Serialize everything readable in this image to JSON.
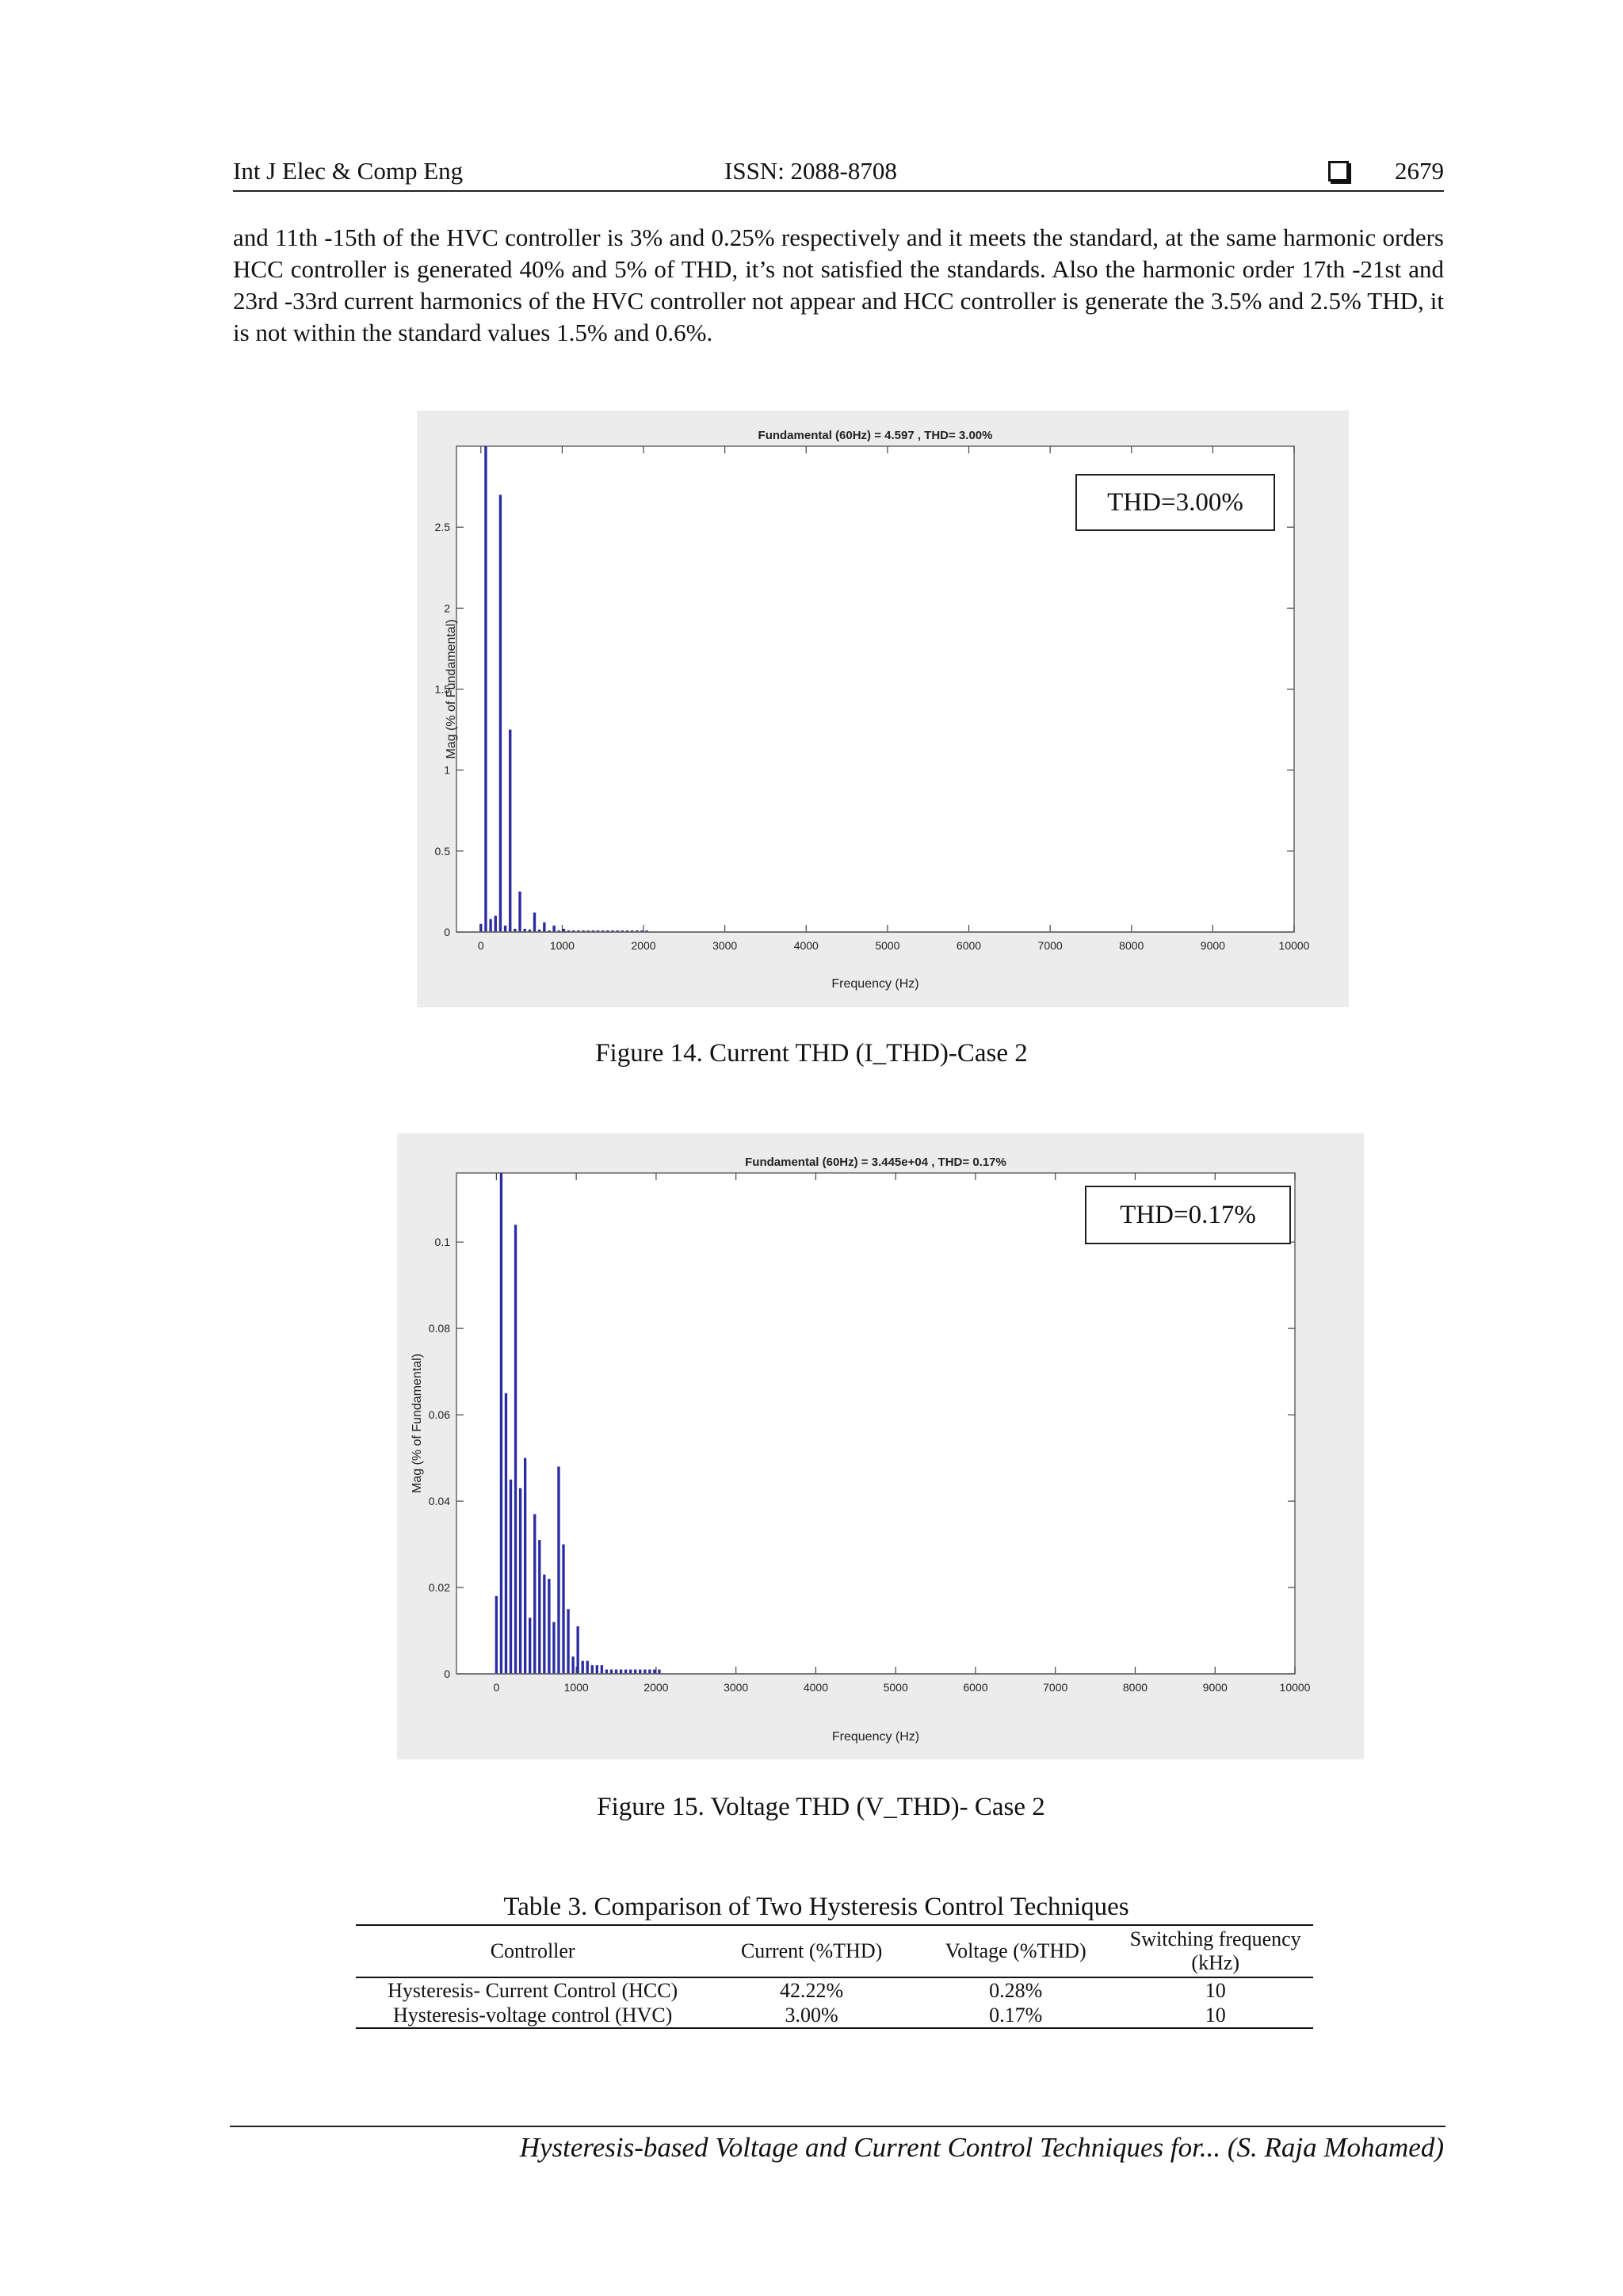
{
  "header": {
    "journal": "Int J Elec & Comp Eng",
    "issn": "ISSN: 2088-8708",
    "page_number": "2679"
  },
  "body_paragraph": "and 11th -15th of the HVC controller is 3% and 0.25% respectively and it meets the standard, at the same harmonic orders HCC controller is generated 40% and 5% of THD, it’s not satisfied the standards. Also the harmonic order 17th -21st and 23rd -33rd current harmonics of the HVC controller not appear and HCC controller is generate the 3.5% and 2.5% THD, it is not within the standard values 1.5% and 0.6%.",
  "figure14": {
    "caption": "Figure 14. Current THD (I_THD)-Case 2",
    "callout": "THD=3.00%"
  },
  "figure15": {
    "caption": "Figure 15. Voltage THD (V_THD)- Case 2",
    "callout": "THD=0.17%"
  },
  "chart_data": [
    {
      "type": "bar",
      "title": "Fundamental (60Hz) = 4.597 , THD= 3.00%",
      "xlabel": "Frequency (Hz)",
      "ylabel": "Mag (% of Fundamental)",
      "xlim": [
        -300,
        10000
      ],
      "ylim": [
        0,
        3
      ],
      "xticks": [
        0,
        1000,
        2000,
        3000,
        4000,
        5000,
        6000,
        7000,
        8000,
        9000,
        10000
      ],
      "xtick_labels": [
        "0",
        "1000",
        "2000",
        "3000",
        "4000",
        "5000",
        "6000",
        "7000",
        "8000",
        "9000",
        "10000"
      ],
      "yticks": [
        0,
        0.5,
        1,
        1.5,
        2,
        2.5
      ],
      "ytick_labels": [
        "0",
        "0.5",
        "1",
        "1.5",
        "2",
        "2.5"
      ],
      "grid": false,
      "x": [
        0,
        60,
        120,
        180,
        240,
        300,
        360,
        420,
        480,
        540,
        600,
        660,
        720,
        780,
        840,
        900,
        960,
        1020,
        1080,
        1140,
        1200,
        1260,
        1320,
        1380,
        1440,
        1500,
        1560,
        1620,
        1680,
        1740,
        1800,
        1860,
        1920,
        1980,
        2040
      ],
      "values": [
        0.05,
        3.0,
        0.08,
        0.1,
        2.7,
        0.04,
        1.25,
        0.02,
        0.25,
        0.02,
        0.015,
        0.12,
        0.015,
        0.06,
        0.01,
        0.04,
        0.01,
        0.02,
        0.01,
        0.01,
        0.01,
        0.01,
        0.01,
        0.01,
        0.01,
        0.01,
        0.01,
        0.01,
        0.01,
        0.01,
        0.01,
        0.01,
        0.01,
        0.01,
        0.01
      ]
    },
    {
      "type": "bar",
      "title": "Fundamental (60Hz) = 3.445e+04 , THD= 0.17%",
      "xlabel": "Frequency (Hz)",
      "ylabel": "Mag (% of Fundamental)",
      "xlim": [
        -500,
        10000
      ],
      "ylim": [
        0,
        0.116
      ],
      "xticks": [
        0,
        1000,
        2000,
        3000,
        4000,
        5000,
        6000,
        7000,
        8000,
        9000,
        10000
      ],
      "xtick_labels": [
        "0",
        "1000",
        "2000",
        "3000",
        "4000",
        "5000",
        "6000",
        "7000",
        "8000",
        "9000",
        "10000"
      ],
      "yticks": [
        0,
        0.02,
        0.04,
        0.06,
        0.08,
        0.1
      ],
      "ytick_labels": [
        "0",
        "0.02",
        "0.04",
        "0.06",
        "0.08",
        "0.1"
      ],
      "grid": false,
      "x": [
        0,
        60,
        120,
        180,
        240,
        300,
        360,
        420,
        480,
        540,
        600,
        660,
        720,
        780,
        840,
        900,
        960,
        1020,
        1080,
        1140,
        1200,
        1260,
        1320,
        1380,
        1440,
        1500,
        1560,
        1620,
        1680,
        1740,
        1800,
        1860,
        1920,
        1980,
        2040
      ],
      "values": [
        0.018,
        0.116,
        0.065,
        0.045,
        0.104,
        0.043,
        0.05,
        0.013,
        0.037,
        0.031,
        0.023,
        0.022,
        0.012,
        0.048,
        0.03,
        0.015,
        0.004,
        0.011,
        0.003,
        0.003,
        0.002,
        0.002,
        0.002,
        0.001,
        0.001,
        0.001,
        0.001,
        0.001,
        0.001,
        0.001,
        0.001,
        0.001,
        0.001,
        0.001,
        0.001
      ]
    }
  ],
  "table3": {
    "title": "Table 3. Comparison of Two Hysteresis Control Techniques",
    "headers": [
      "Controller",
      "Current (%THD)",
      "Voltage (%THD)",
      "Switching frequency (kHz)"
    ],
    "rows": [
      [
        "Hysteresis- Current Control (HCC)",
        "42.22%",
        "0.28%",
        "10"
      ],
      [
        "Hysteresis-voltage control (HVC)",
        "3.00%",
        "0.17%",
        "10"
      ]
    ]
  },
  "footer": "Hysteresis-based Voltage and Current Control Techniques for... (S. Raja Mohamed)",
  "colors": {
    "bar": "#2b2ba3",
    "figure_background": "#ececec"
  }
}
